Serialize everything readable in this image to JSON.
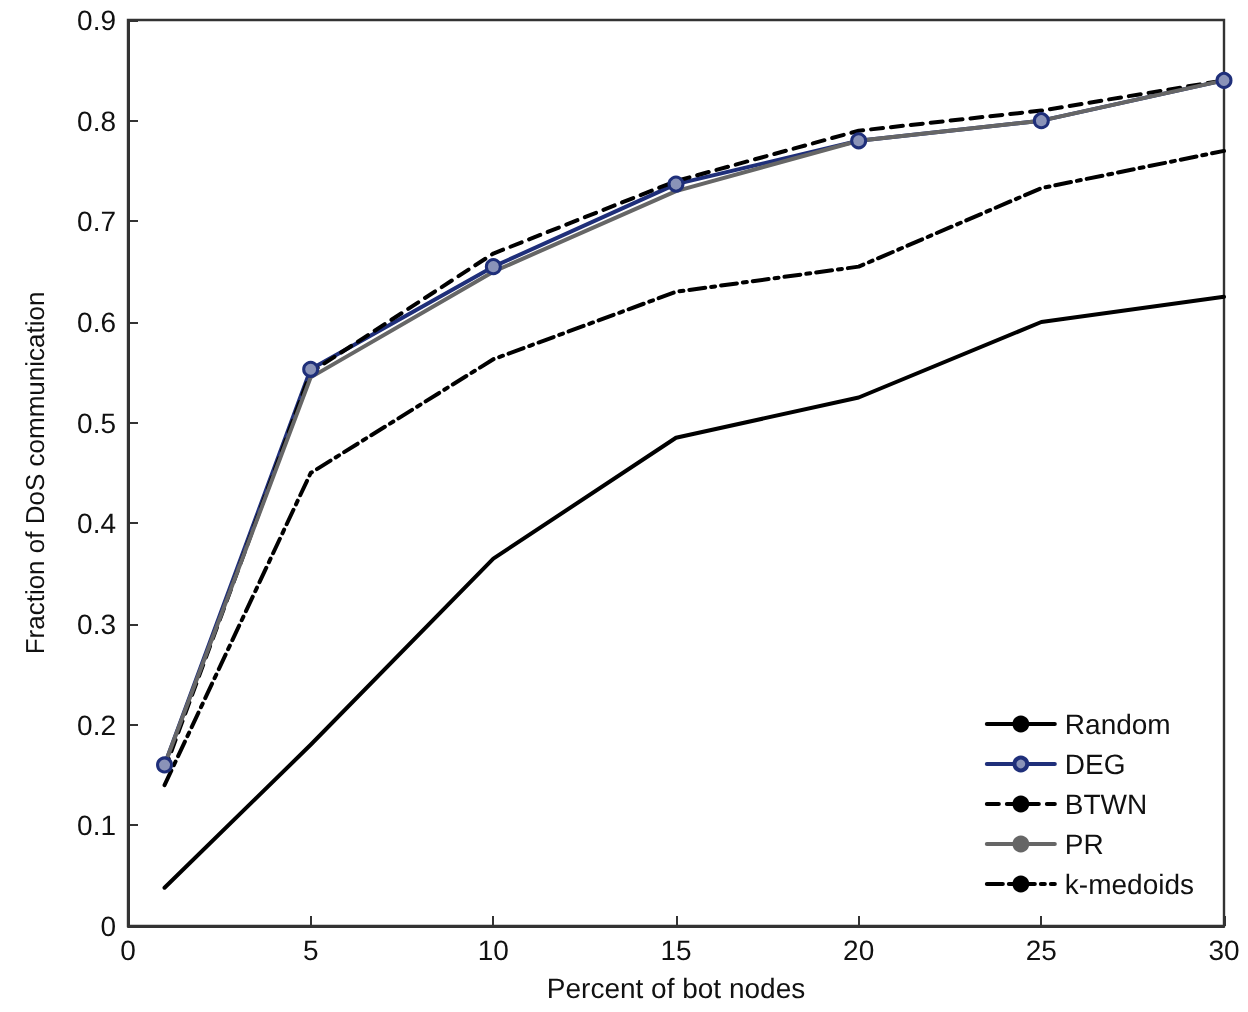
{
  "chart_data": {
    "type": "line",
    "xlabel": "Percent of bot nodes",
    "ylabel": "Fraction of DoS communication",
    "x": [
      1,
      5,
      10,
      15,
      20,
      25,
      30
    ],
    "series": [
      {
        "name": "Random",
        "color": "#000000",
        "line_style": "solid",
        "marker": "none",
        "values": [
          0.038,
          0.18,
          0.365,
          0.485,
          0.525,
          0.6,
          0.625
        ]
      },
      {
        "name": "DEG",
        "color": "#1f2f7a",
        "line_style": "solid",
        "marker": "circle",
        "values": [
          0.16,
          0.553,
          0.655,
          0.737,
          0.78,
          0.8,
          0.84
        ]
      },
      {
        "name": "BTWN",
        "color": "#000000",
        "line_style": "dashed",
        "marker": "none",
        "values": [
          0.155,
          0.55,
          0.668,
          0.74,
          0.79,
          0.81,
          0.84
        ]
      },
      {
        "name": "PR",
        "color": "#666666",
        "line_style": "solid",
        "marker": "none",
        "values": [
          0.16,
          0.545,
          0.65,
          0.73,
          0.78,
          0.8,
          0.84
        ]
      },
      {
        "name": "k-medoids",
        "color": "#000000",
        "line_style": "dashdot",
        "marker": "none",
        "values": [
          0.14,
          0.45,
          0.563,
          0.63,
          0.655,
          0.733,
          0.77
        ]
      }
    ],
    "xlim": [
      0,
      30
    ],
    "xticks": [
      0,
      5,
      10,
      15,
      20,
      25,
      30
    ],
    "ylim": [
      0,
      0.9
    ],
    "yticks": [
      0,
      0.1,
      0.2,
      0.3,
      0.4,
      0.5,
      0.6,
      0.7,
      0.8,
      0.9
    ],
    "grid": false,
    "legend": "bottom right"
  }
}
